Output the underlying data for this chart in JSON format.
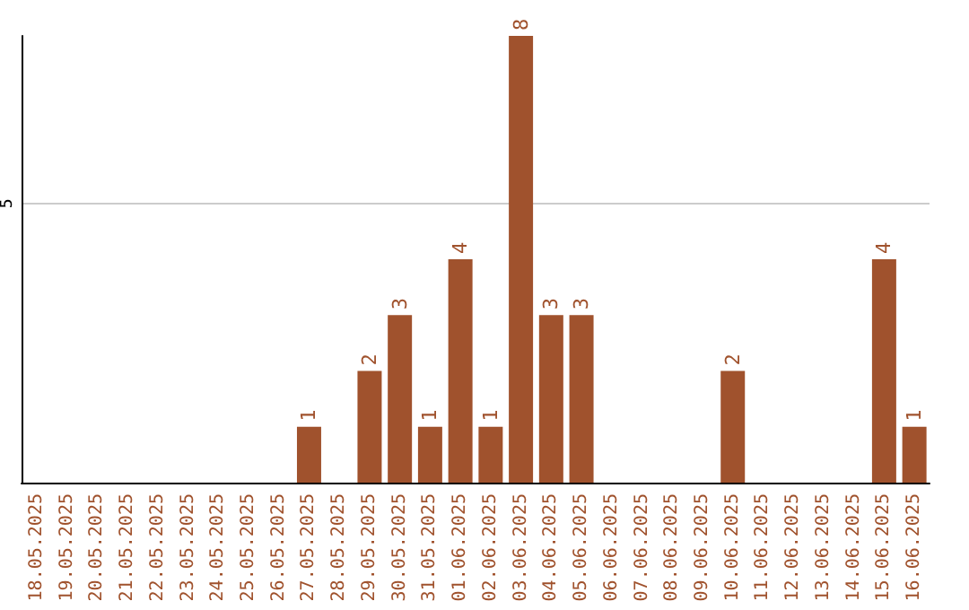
{
  "chart_data": {
    "type": "bar",
    "categories": [
      "18.05.2025",
      "19.05.2025",
      "20.05.2025",
      "21.05.2025",
      "22.05.2025",
      "23.05.2025",
      "24.05.2025",
      "25.05.2025",
      "26.05.2025",
      "27.05.2025",
      "28.05.2025",
      "29.05.2025",
      "30.05.2025",
      "31.05.2025",
      "01.06.2025",
      "02.06.2025",
      "03.06.2025",
      "04.06.2025",
      "05.06.2025",
      "06.06.2025",
      "07.06.2025",
      "08.06.2025",
      "09.06.2025",
      "10.06.2025",
      "11.06.2025",
      "12.06.2025",
      "13.06.2025",
      "14.06.2025",
      "15.06.2025",
      "16.06.2025"
    ],
    "values": [
      0,
      0,
      0,
      0,
      0,
      0,
      0,
      0,
      0,
      1,
      0,
      2,
      3,
      1,
      4,
      1,
      8,
      3,
      3,
      0,
      0,
      0,
      0,
      2,
      0,
      0,
      0,
      0,
      4,
      1
    ],
    "value_labels": [
      null,
      null,
      null,
      null,
      null,
      null,
      null,
      null,
      null,
      "1",
      null,
      "2",
      "3",
      "1",
      "4",
      "1",
      "8",
      "3",
      "3",
      null,
      null,
      null,
      null,
      "2",
      null,
      null,
      null,
      null,
      "4",
      "1"
    ],
    "color": "#a0522d",
    "ylim": [
      0,
      8
    ],
    "yticks": [
      5
    ],
    "grid": "y"
  }
}
